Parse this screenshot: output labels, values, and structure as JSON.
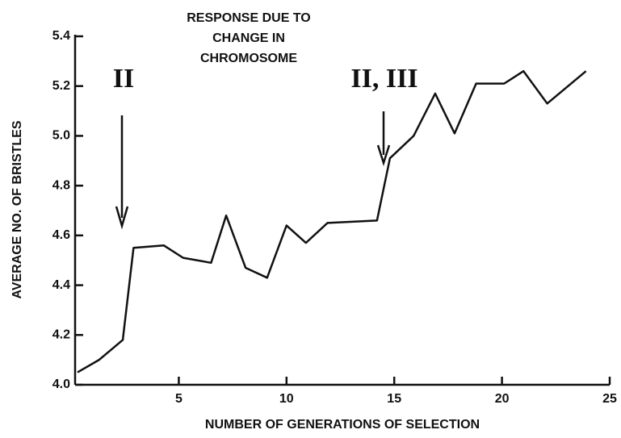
{
  "chart_data": {
    "type": "line",
    "annotation_lines": [
      "RESPONSE DUE TO",
      "CHANGE IN",
      "CHROMOSOME"
    ],
    "marker_labels": [
      "II",
      "II, III"
    ],
    "xlabel": "NUMBER OF GENERATIONS OF SELECTION",
    "ylabel": "AVERAGE NO. OF BRISTLES",
    "x": [
      0.3,
      1.3,
      2.4,
      2.9,
      4.3,
      5.2,
      6.5,
      7.2,
      8.1,
      9.1,
      10.0,
      10.9,
      11.9,
      14.2,
      14.8,
      15.9,
      16.9,
      17.8,
      18.8,
      20.1,
      21.0,
      22.1,
      23.9
    ],
    "series": [
      {
        "color": "#111111",
        "values": [
          4.05,
          4.1,
          4.18,
          4.55,
          4.56,
          4.51,
          4.49,
          4.68,
          4.47,
          4.43,
          4.64,
          4.57,
          4.65,
          4.66,
          4.91,
          5.0,
          5.17,
          5.01,
          5.21,
          5.21,
          5.26,
          5.13,
          5.26
        ]
      }
    ],
    "xlim": [
      0,
      25
    ],
    "xticks": [
      5,
      10,
      15,
      20,
      25
    ],
    "ylim": [
      4.0,
      5.4
    ],
    "yticks": [
      {
        "value": 4.0,
        "label": "4.0"
      },
      4.2,
      4.4,
      4.6,
      4.8,
      {
        "value": 5.0,
        "label": "5.0"
      },
      5.2,
      5.4
    ]
  }
}
